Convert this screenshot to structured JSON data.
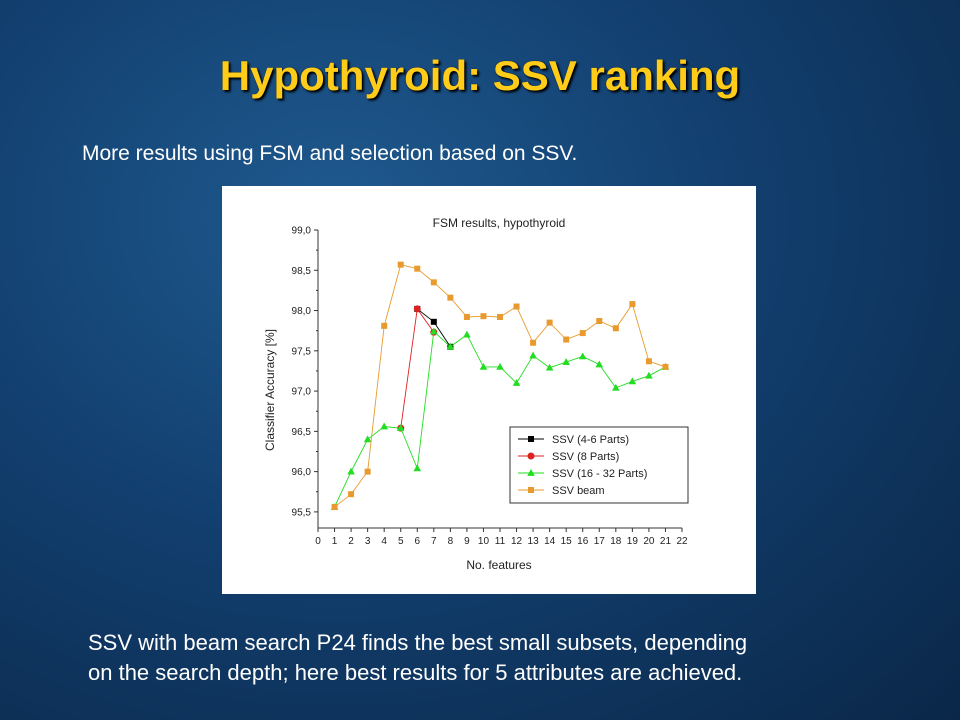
{
  "slide": {
    "title": "Hypothyroid: SSV ranking",
    "subtitle": "More results using FSM and selection based on SSV.",
    "caption_line1": "SSV with beam search P24 finds the best small subsets, depending",
    "caption_line2": "on the search depth; here best results for 5 attributes are achieved."
  },
  "chart_data": {
    "type": "line",
    "title": "FSM results, hypothyroid",
    "xlabel": "No. features",
    "ylabel": "Classifier Accuracy [%]",
    "xlim": [
      0,
      22
    ],
    "ylim": [
      95.3,
      99.0
    ],
    "x_ticks": [
      0,
      1,
      2,
      3,
      4,
      5,
      6,
      7,
      8,
      9,
      10,
      11,
      12,
      13,
      14,
      15,
      16,
      17,
      18,
      19,
      20,
      21,
      22
    ],
    "y_ticks": [
      "95,5",
      "96,0",
      "96,5",
      "97,0",
      "97,5",
      "98,0",
      "98,5",
      "99,0"
    ],
    "y_tick_values": [
      95.5,
      96.0,
      96.5,
      97.0,
      97.5,
      98.0,
      98.5,
      99.0
    ],
    "legend_position": "bottom-right",
    "grid": false,
    "series": [
      {
        "name": "SSV (4-6 Parts)",
        "color": "#000000",
        "marker": "square",
        "x": [
          6,
          7,
          8
        ],
        "y": [
          98.02,
          97.86,
          97.55
        ]
      },
      {
        "name": "SSV (8 Parts)",
        "color": "#dd2222",
        "marker": "circle",
        "x": [
          5,
          6,
          7
        ],
        "y": [
          96.54,
          98.02,
          97.73
        ]
      },
      {
        "name": "SSV (16 - 32 Parts)",
        "color": "#22dd22",
        "marker": "triangle",
        "x": [
          1,
          2,
          3,
          4,
          5,
          6,
          7,
          8,
          9,
          10,
          11,
          12,
          13,
          14,
          15,
          16,
          17,
          18,
          19,
          20,
          21
        ],
        "y": [
          95.56,
          96.0,
          96.4,
          96.56,
          96.54,
          96.04,
          97.74,
          97.55,
          97.7,
          97.3,
          97.3,
          97.1,
          97.44,
          97.29,
          97.36,
          97.43,
          97.33,
          97.04,
          97.12,
          97.19,
          97.3
        ]
      },
      {
        "name": "SSV beam",
        "color": "#e89a2e",
        "marker": "square",
        "x": [
          1,
          2,
          3,
          4,
          5,
          6,
          7,
          8,
          9,
          10,
          11,
          12,
          13,
          14,
          15,
          16,
          17,
          18,
          19,
          20,
          21
        ],
        "y": [
          95.56,
          95.72,
          96.0,
          97.81,
          98.57,
          98.52,
          98.35,
          98.16,
          97.92,
          97.93,
          97.92,
          98.05,
          97.6,
          97.85,
          97.64,
          97.72,
          97.87,
          97.78,
          98.08,
          97.37,
          97.3
        ]
      }
    ]
  }
}
